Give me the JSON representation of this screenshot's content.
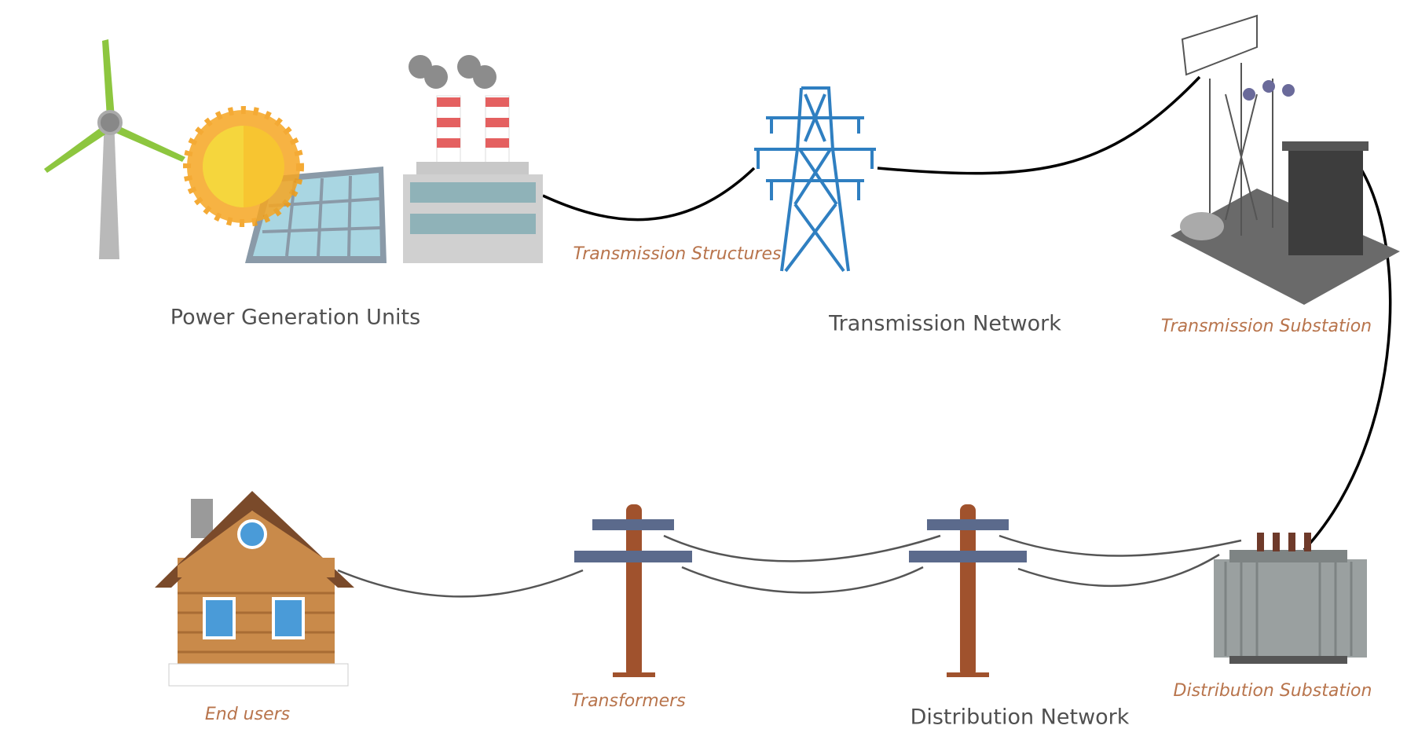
{
  "sections": [
    {
      "label": "Power Generation Units"
    },
    {
      "label": "Transmission Network",
      "captions": [
        "Transmission Structures",
        "Transmission Substation"
      ]
    },
    {
      "label": "Distribution Network",
      "captions": [
        "Distribution Substation",
        "Transformers",
        "End users"
      ]
    }
  ]
}
